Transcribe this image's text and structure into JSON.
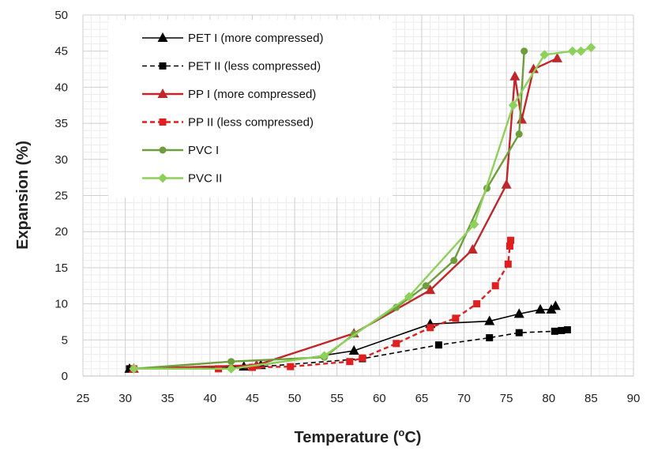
{
  "chart_data": {
    "type": "line",
    "xlabel": "Temperature (",
    "xlabel_sup": "o",
    "xlabel_suffix": "C)",
    "ylabel": "Expansion (%)",
    "xlim": [
      25,
      90
    ],
    "ylim": [
      0,
      50
    ],
    "xticks": [
      25,
      30,
      35,
      40,
      45,
      50,
      55,
      60,
      65,
      70,
      75,
      80,
      85,
      90
    ],
    "yticks": [
      0,
      5,
      10,
      15,
      20,
      25,
      30,
      35,
      40,
      45,
      50
    ],
    "grid": "minor and major, light gray",
    "legend_position": "top-left",
    "series": [
      {
        "name": "PET I (more compressed)",
        "color": "#000000",
        "marker": "triangle",
        "dash": "solid",
        "x": [
          30.5,
          44,
          46,
          57,
          66,
          73,
          76.5,
          79,
          80.3,
          80.8
        ],
        "y": [
          1.0,
          1.3,
          1.5,
          3.5,
          7.2,
          7.6,
          8.6,
          9.2,
          9.2,
          9.7
        ]
      },
      {
        "name": "PET II (less compressed)",
        "color": "#000000",
        "marker": "square",
        "dash": "dashed",
        "x": [
          30.5,
          45,
          58,
          67,
          73,
          76.5,
          80.7,
          81.5,
          82.2
        ],
        "y": [
          1.0,
          1.2,
          2.4,
          4.3,
          5.3,
          6.0,
          6.2,
          6.3,
          6.4
        ]
      },
      {
        "name": "PP I  (more compressed)",
        "color": "#c0262a",
        "marker": "triangle",
        "dash": "solid",
        "x": [
          31,
          45.5,
          57,
          66,
          71,
          75,
          76,
          76.8,
          78.2,
          81
        ],
        "y": [
          1.0,
          1.5,
          5.9,
          11.9,
          17.5,
          26.5,
          41.5,
          35.5,
          42.5,
          44.0
        ]
      },
      {
        "name": "PP II (less compressed)",
        "color": "#e02020",
        "marker": "square",
        "dash": "dashed",
        "x": [
          31,
          41,
          45,
          49.5,
          56.5,
          58,
          62,
          66,
          69,
          71.5,
          73.7,
          75.2,
          75.4,
          75.5
        ],
        "y": [
          1.0,
          1.0,
          1.2,
          1.3,
          2.0,
          2.5,
          4.5,
          6.7,
          8.0,
          10.0,
          12.5,
          15.5,
          18.0,
          18.8
        ]
      },
      {
        "name": "PVC I",
        "color": "#6e9e3c",
        "marker": "circle",
        "dash": "solid",
        "x": [
          31,
          42.5,
          53.5,
          57,
          62,
          65.5,
          68.8,
          72.7,
          76.5,
          77.1
        ],
        "y": [
          1.0,
          2.0,
          2.6,
          5.8,
          9.5,
          12.5,
          16.0,
          26.0,
          33.5,
          45.0
        ]
      },
      {
        "name": "PVC II",
        "color": "#8ed15a",
        "marker": "diamond",
        "dash": "solid",
        "x": [
          31,
          42.5,
          53.5,
          63.5,
          71.2,
          75.8,
          79.5,
          82.8,
          83.8,
          85
        ],
        "y": [
          1.0,
          1.0,
          2.8,
          11.0,
          21.0,
          37.5,
          44.5,
          45.0,
          45.0,
          45.5
        ]
      }
    ]
  }
}
